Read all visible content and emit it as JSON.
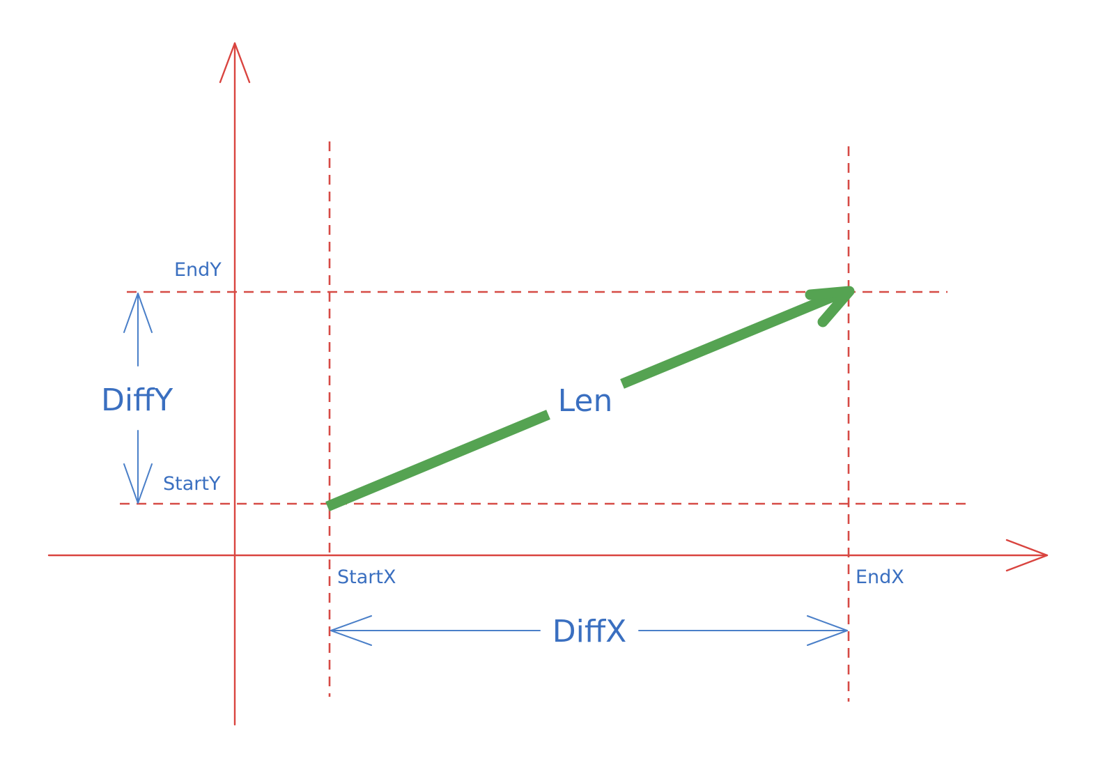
{
  "colors": {
    "axis": "#d9443f",
    "guide": "#d64a45",
    "measure": "#4a7fc8",
    "vector": "#55a352",
    "text": "#3a6fc0",
    "background": "#ffffff"
  },
  "labels": {
    "end_y": "EndY",
    "start_y": "StartY",
    "diff_y": "DiffY",
    "start_x": "StartX",
    "end_x": "EndX",
    "diff_x": "DiffX",
    "len": "Len"
  }
}
